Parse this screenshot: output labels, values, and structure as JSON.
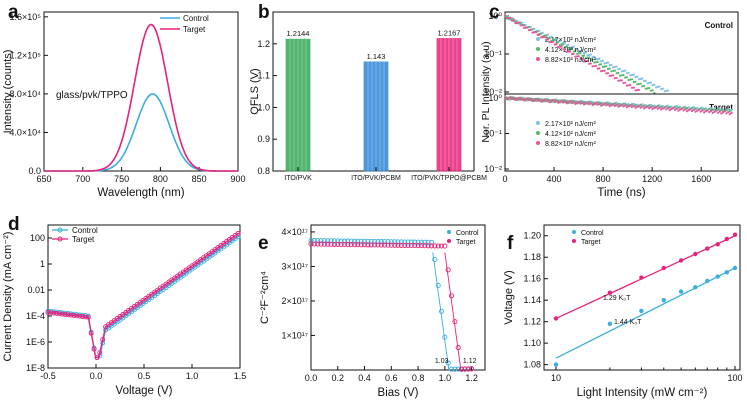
{
  "figure_title": "",
  "colors": {
    "control": "#3aaee0",
    "target": "#e8227a",
    "green": "#34a853",
    "blue": "#2f86d6",
    "pink": "#e8227a"
  },
  "chart_data": [
    {
      "id": "a",
      "panel_label": "a",
      "type": "line",
      "xlabel": "Wavelength (nm)",
      "ylabel": "Intensity (counts)",
      "xlim": [
        650,
        900
      ],
      "ylim": [
        0,
        165000
      ],
      "x_ticks": [
        "650",
        "700",
        "750",
        "800",
        "850",
        "900"
      ],
      "y_ticks": [
        "0.0",
        "4.0×10⁴",
        "8.0×10⁴",
        "1.2×10⁵",
        "1.6×10⁵"
      ],
      "y_tick_values": [
        0,
        40000,
        80000,
        120000,
        160000
      ],
      "annotation": "glass/pvk/TPPO",
      "series": [
        {
          "name": "Control",
          "color": "#3aaee0",
          "peak_wavelength": 790,
          "peak": 80000,
          "fwhm": 50
        },
        {
          "name": "Target",
          "color": "#e8227a",
          "peak_wavelength": 788,
          "peak": 152000,
          "fwhm": 50
        }
      ]
    },
    {
      "id": "b",
      "panel_label": "b",
      "type": "bar",
      "xlabel": "",
      "ylabel": "QFLS (V)",
      "ylim": [
        0.8,
        1.3
      ],
      "y_ticks": [
        "0.8",
        "0.9",
        "1.0",
        "1.1",
        "1.2"
      ],
      "y_tick_values": [
        0.8,
        0.9,
        1.0,
        1.1,
        1.2
      ],
      "categories": [
        "ITO/PVK",
        "ITO/PVK/PCBM",
        "ITO/PVK/TPPO@PCBM"
      ],
      "values": [
        1.2144,
        1.143,
        1.2167
      ],
      "value_labels": [
        "1.2144",
        "1.143",
        "1.2167"
      ],
      "bar_colors": [
        "#34a853",
        "#2f86d6",
        "#e8227a"
      ]
    },
    {
      "id": "c",
      "panel_label": "c",
      "type": "scatter",
      "xlabel": "Time (ns)",
      "ylabel": "Nor. PL Intensity (a.u)",
      "xlim": [
        0,
        1900
      ],
      "x_ticks": [
        "0",
        "400",
        "800",
        "1200",
        "1600"
      ],
      "x_tick_values": [
        0,
        400,
        800,
        1200,
        1600
      ],
      "legend": [
        "2.17×10² nJ/cm²",
        "4.12×10² nJ/cm²",
        "8.82×10² nJ/cm²"
      ],
      "legend_colors": [
        "#7fbfe8",
        "#56b96a",
        "#e8559a"
      ],
      "subplots": [
        {
          "title": "Control",
          "ylim_exp": [
            -2,
            0
          ],
          "y_ticks": [
            "10⁻²",
            "10⁻¹",
            "10⁰"
          ],
          "series": [
            {
              "name": "2.17×10² nJ/cm²",
              "tau": 290,
              "t_end": 1330
            },
            {
              "name": "4.12×10² nJ/cm²",
              "tau": 265,
              "t_end": 1220
            },
            {
              "name": "8.82×10² nJ/cm²",
              "tau": 240,
              "t_end": 1100
            }
          ]
        },
        {
          "title": "Target",
          "ylim_exp": [
            -2,
            0
          ],
          "y_ticks": [
            "10⁻²",
            "10⁻¹",
            "10⁰"
          ],
          "series": [
            {
              "name": "2.17×10² nJ/cm²",
              "tau": 2300,
              "t_end": 1850
            },
            {
              "name": "4.12×10² nJ/cm²",
              "tau": 2150,
              "t_end": 1850
            },
            {
              "name": "8.82×10² nJ/cm²",
              "tau": 1900,
              "t_end": 1850
            }
          ]
        }
      ]
    },
    {
      "id": "d",
      "panel_label": "d",
      "type": "line",
      "xlabel": "Voltage (V)",
      "ylabel": "Current Density (mA cm⁻²)",
      "xlim": [
        -0.5,
        1.5
      ],
      "ylim_exp": [
        -8,
        3
      ],
      "x_ticks": [
        "-0.5",
        "0.0",
        "0.5",
        "1.0",
        "1.5"
      ],
      "x_tick_values": [
        -0.5,
        0,
        0.5,
        1.0,
        1.5
      ],
      "y_ticks": [
        "1E-8",
        "1E-6",
        "1E-4",
        "0.01",
        "1",
        "100"
      ],
      "y_tick_exp": [
        -8,
        -6,
        -4,
        -2,
        0,
        2
      ],
      "legend": [
        "Control",
        "Target"
      ],
      "series": [
        {
          "name": "Control",
          "color": "#3aaee0",
          "turn_on_v": 0.35
        },
        {
          "name": "Target",
          "color": "#e8227a",
          "turn_on_v": 0.3
        }
      ]
    },
    {
      "id": "e",
      "panel_label": "e",
      "type": "scatter",
      "xlabel": "Bias (V)",
      "ylabel": "C⁻²F⁻²cm⁴",
      "xlim": [
        0,
        1.3
      ],
      "ylim": [
        0,
        4.2e+17
      ],
      "x_ticks": [
        "0.0",
        "0.2",
        "0.4",
        "0.6",
        "0.8",
        "1.0",
        "1.2"
      ],
      "x_tick_values": [
        0,
        0.2,
        0.4,
        0.6,
        0.8,
        1.0,
        1.2
      ],
      "y_ticks": [
        "1×10¹⁷",
        "2×10¹⁷",
        "3×10¹⁷",
        "4×10¹⁷"
      ],
      "y_tick_values": [
        1e+17,
        2e+17,
        3e+17,
        4e+17
      ],
      "legend": [
        "Control",
        "Target"
      ],
      "series": [
        {
          "name": "Control",
          "color": "#3aaee0",
          "plateau": 3.75e+17,
          "vbi": 1.03,
          "label": "1.03"
        },
        {
          "name": "Target",
          "color": "#e8227a",
          "plateau": 3.65e+17,
          "vbi": 1.12,
          "label": "1.12"
        }
      ]
    },
    {
      "id": "f",
      "panel_label": "f",
      "type": "scatter",
      "xlabel": "Light Intensity (mW cm⁻²)",
      "ylabel": "Voltage (V)",
      "xlim": [
        10,
        100
      ],
      "ylim": [
        1.075,
        1.21
      ],
      "x_ticks": [
        "10",
        "100"
      ],
      "x_tick_values": [
        10,
        100
      ],
      "y_ticks": [
        "1.08",
        "1.10",
        "1.12",
        "1.14",
        "1.16",
        "1.18",
        "1.20"
      ],
      "y_tick_values": [
        1.08,
        1.1,
        1.12,
        1.14,
        1.16,
        1.18,
        1.2
      ],
      "legend": [
        "Control",
        "Target"
      ],
      "series": [
        {
          "name": "Control",
          "color": "#3aaee0",
          "x": [
            10,
            20,
            30,
            40,
            50,
            60,
            70,
            80,
            90,
            100
          ],
          "y": [
            1.08,
            1.118,
            1.13,
            1.14,
            1.148,
            1.152,
            1.158,
            1.162,
            1.166,
            1.17
          ],
          "fit_label": "1.44 K₀T",
          "fit": [
            1.086,
            1.17
          ]
        },
        {
          "name": "Target",
          "color": "#e8227a",
          "x": [
            10,
            20,
            30,
            40,
            50,
            60,
            70,
            80,
            90,
            100
          ],
          "y": [
            1.123,
            1.147,
            1.161,
            1.17,
            1.177,
            1.183,
            1.188,
            1.192,
            1.197,
            1.201
          ],
          "fit_label": "1.29 K₀T",
          "fit": [
            1.123,
            1.2
          ]
        }
      ]
    }
  ]
}
